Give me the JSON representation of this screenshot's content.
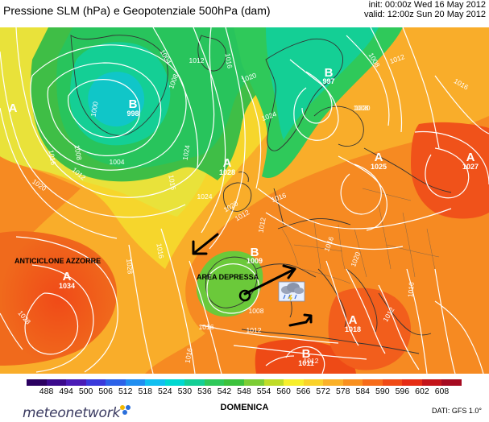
{
  "header": {
    "title": "Pressione SLM (hPa) e Geopotenziale 500hPa (dam)",
    "init": "init: 00:00z Wed 16 May 2012",
    "valid": "valid: 12:00z Sun 20 May 2012"
  },
  "map": {
    "centers": [
      {
        "id": "A-west",
        "letter": "A",
        "value": ""
      },
      {
        "id": "B-greenland",
        "letter": "B",
        "value": "998"
      },
      {
        "id": "B-scandinavia",
        "letter": "B",
        "value": "997"
      },
      {
        "id": "A-bay",
        "letter": "A",
        "value": "1028"
      },
      {
        "id": "A-russia",
        "letter": "A",
        "value": "1025"
      },
      {
        "id": "A-east",
        "letter": "A",
        "value": "1027"
      },
      {
        "id": "A-azores",
        "letter": "A",
        "value": "1034"
      },
      {
        "id": "B-iberia",
        "letter": "B",
        "value": "1009"
      },
      {
        "id": "A-balkan",
        "letter": "A",
        "value": "1018"
      },
      {
        "id": "B-africa",
        "letter": "B",
        "value": "1011"
      }
    ],
    "isobar_labels": [
      "1004",
      "1012",
      "1016",
      "1008",
      "1000",
      "1004",
      "1008",
      "1012",
      "1016",
      "1020",
      "1024",
      "1020",
      "1016",
      "1008",
      "1012",
      "1016",
      "1020",
      "1024",
      "1016",
      "1028",
      "1020",
      "1024",
      "1012",
      "1016",
      "1028",
      "1012",
      "1008",
      "1016",
      "1012",
      "1016",
      "1012",
      "1016",
      "1020",
      "1016",
      "1012",
      "1008"
    ],
    "annotations": {
      "azores": "ANTICICLONE AZZORRE",
      "depression": "AREA DEPRESSA"
    },
    "weather_icon": "storm-cloud-icon"
  },
  "legend": {
    "values": [
      "488",
      "494",
      "500",
      "506",
      "512",
      "518",
      "524",
      "530",
      "536",
      "542",
      "548",
      "554",
      "560",
      "566",
      "572",
      "578",
      "584",
      "590",
      "596",
      "602",
      "608"
    ],
    "colors": [
      "#2a0060",
      "#3b0a8c",
      "#4a1cb6",
      "#3a3adb",
      "#2c62e8",
      "#1f8ef0",
      "#10bff0",
      "#00d8d0",
      "#14cf95",
      "#2fc95a",
      "#3cc23c",
      "#7ccd35",
      "#bfdc28",
      "#f7ef2c",
      "#fad22a",
      "#fbb128",
      "#f9901f",
      "#f76c1a",
      "#f04a15",
      "#e62c14",
      "#c4141a",
      "#a50a20"
    ]
  },
  "footer": {
    "brand": "meteonetwork",
    "day": "DOMENICA",
    "source": "DATI: GFS 1.0°"
  },
  "colors": {
    "dot1": "#f2b800",
    "dot2": "#2a6fdb",
    "dot3": "#2a6fdb"
  }
}
